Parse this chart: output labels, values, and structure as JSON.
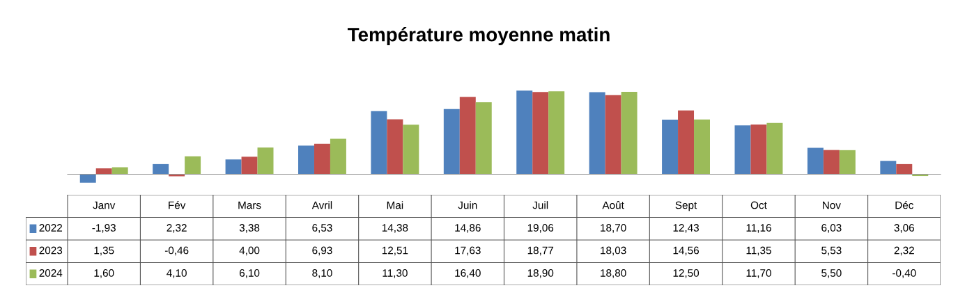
{
  "chart_data": {
    "type": "bar",
    "title": "Température moyenne matin",
    "categories": [
      "Janv",
      "Fév",
      "Mars",
      "Avril",
      "Mai",
      "Juin",
      "Juil",
      "Août",
      "Sept",
      "Oct",
      "Nov",
      "Déc"
    ],
    "series": [
      {
        "name": "2022",
        "color": "#4f81bd",
        "values": [
          -1.93,
          2.32,
          3.38,
          6.53,
          14.38,
          14.86,
          19.06,
          18.7,
          12.43,
          11.16,
          6.03,
          3.06
        ],
        "value_labels": [
          "-1,93",
          "2,32",
          "3,38",
          "6,53",
          "14,38",
          "14,86",
          "19,06",
          "18,70",
          "12,43",
          "11,16",
          "6,03",
          "3,06"
        ]
      },
      {
        "name": "2023",
        "color": "#c0504d",
        "values": [
          1.35,
          -0.46,
          4.0,
          6.93,
          12.51,
          17.63,
          18.77,
          18.03,
          14.56,
          11.35,
          5.53,
          2.32
        ],
        "value_labels": [
          "1,35",
          "-0,46",
          "4,00",
          "6,93",
          "12,51",
          "17,63",
          "18,77",
          "18,03",
          "14,56",
          "11,35",
          "5,53",
          "2,32"
        ]
      },
      {
        "name": "2024",
        "color": "#9bbb59",
        "values": [
          1.6,
          4.1,
          6.1,
          8.1,
          11.3,
          16.4,
          18.9,
          18.8,
          12.5,
          11.7,
          5.5,
          -0.4
        ],
        "value_labels": [
          "1,60",
          "4,10",
          "6,10",
          "8,10",
          "11,30",
          "16,40",
          "18,90",
          "18,80",
          "12,50",
          "11,70",
          "5,50",
          "-0,40"
        ]
      }
    ],
    "legend": "left"
  }
}
